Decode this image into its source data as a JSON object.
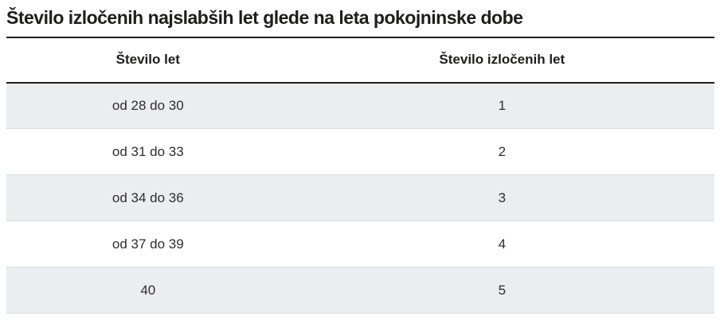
{
  "page": {
    "title": "Število izločenih najslabših let glede na leta pokojninske dobe"
  },
  "table": {
    "columns": [
      "Število let",
      "Število izločenih let"
    ],
    "rows": [
      {
        "years": "od 28 do 30",
        "excluded": "1"
      },
      {
        "years": "od 31 do 33",
        "excluded": "2"
      },
      {
        "years": "od 34 do 36",
        "excluded": "3"
      },
      {
        "years": "od 37 do 39",
        "excluded": "4"
      },
      {
        "years": "40",
        "excluded": "5"
      }
    ]
  },
  "colors": {
    "title_text": "#1d1d1b",
    "dark_rule": "#1d1d1b",
    "alt_row_bg": "#eaeef1",
    "row_separator": "#d8dcde",
    "cell_text": "#2e2e2e"
  }
}
